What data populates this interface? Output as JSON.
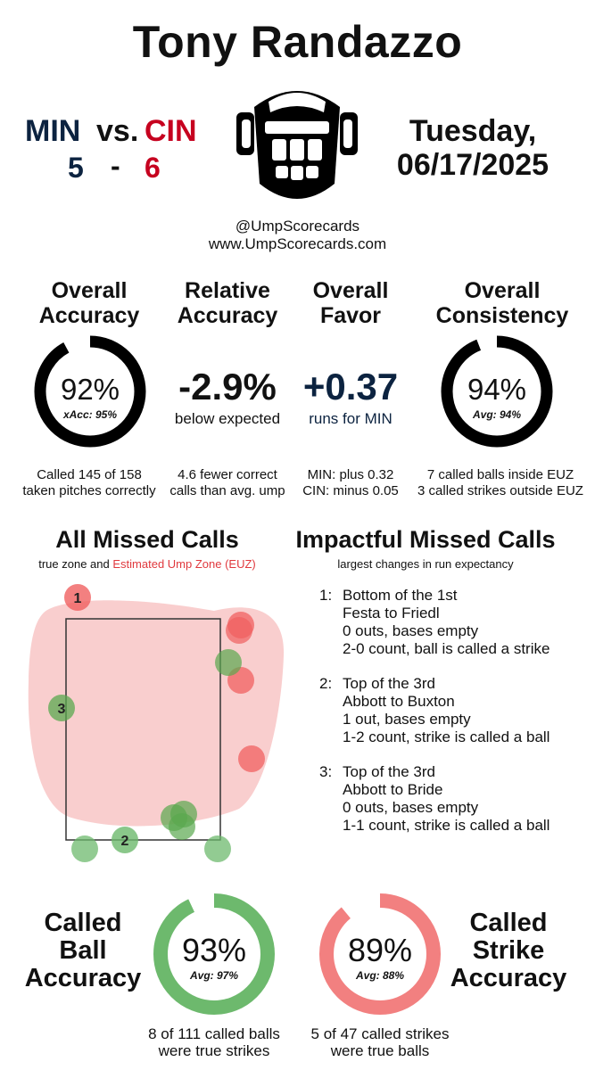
{
  "title": "Tony Randazzo",
  "game": {
    "away_team": "MIN",
    "vs": "vs.",
    "home_team": "CIN",
    "away_score": "5",
    "dash": "-",
    "home_score": "6",
    "day": "Tuesday,",
    "date": "06/17/2025"
  },
  "credits": {
    "handle": "@UmpScorecards",
    "site": "www.UmpScorecards.com"
  },
  "colors": {
    "navy": "#0c2340",
    "red": "#c6011f",
    "green": "#6db96d",
    "pink": "#f28080",
    "zone_fill": "#f8c9c9",
    "ring_dark": "#000000"
  },
  "metrics": {
    "overall_accuracy": {
      "heading_1": "Overall",
      "heading_2": "Accuracy",
      "value": "92%",
      "sub": "xAcc: 95%",
      "fraction": 0.92,
      "note_1": "Called 145 of 158",
      "note_2": "taken pitches correctly"
    },
    "relative_accuracy": {
      "heading_1": "Relative",
      "heading_2": "Accuracy",
      "value": "-2.9%",
      "sub": "below expected",
      "note_1": "4.6 fewer correct",
      "note_2": "calls than avg. ump"
    },
    "overall_favor": {
      "heading_1": "Overall",
      "heading_2": "Favor",
      "value": "+0.37",
      "sub": "runs for MIN",
      "note_1": "MIN: plus 0.32",
      "note_2": "CIN: minus 0.05"
    },
    "overall_consistency": {
      "heading_1": "Overall",
      "heading_2": "Consistency",
      "value": "94%",
      "sub": "Avg: 94%",
      "fraction": 0.94,
      "note_1": "7 called balls inside EUZ",
      "note_2": "3 called strikes outside EUZ"
    }
  },
  "missed_calls": {
    "heading": "All Missed Calls",
    "caption_a": "true zone and",
    "caption_b": "Estimated Ump Zone (EUZ)",
    "labels": {
      "one": "1",
      "two": "2",
      "three": "3"
    }
  },
  "impactful": {
    "heading": "Impactful Missed Calls",
    "caption": "largest changes in run expectancy",
    "items": [
      {
        "num": "1:",
        "inning": "Bottom of the 1st",
        "matchup": "Festa to Friedl",
        "situation": "0 outs, bases empty",
        "call": "2-0 count, ball is called a strike"
      },
      {
        "num": "2:",
        "inning": "Top of the 3rd",
        "matchup": "Abbott to Buxton",
        "situation": "1 out, bases empty",
        "call": "1-2 count, strike is called a ball"
      },
      {
        "num": "3:",
        "inning": "Top of the 3rd",
        "matchup": "Abbott to Bride",
        "situation": "0 outs, bases empty",
        "call": "1-1 count, strike is called a ball"
      }
    ]
  },
  "called_ball": {
    "h1": "Called",
    "h2": "Ball",
    "h3": "Accuracy",
    "value": "93%",
    "sub": "Avg: 97%",
    "fraction": 0.93,
    "note_1": "8 of 111 called balls",
    "note_2": "were true strikes"
  },
  "called_strike": {
    "h1": "Called",
    "h2": "Strike",
    "h3": "Accuracy",
    "value": "89%",
    "sub": "Avg: 88%",
    "fraction": 0.89,
    "note_1": "5 of 47 called strikes",
    "note_2": "were true balls"
  }
}
